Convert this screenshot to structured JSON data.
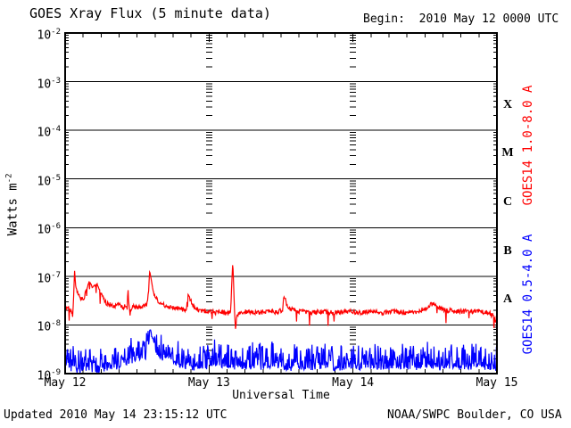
{
  "header": {
    "title": "GOES Xray Flux (5 minute data)",
    "begin_label": "Begin:  2010 May 12 0000 UTC"
  },
  "footer": {
    "updated": "Updated 2010 May 14 23:15:12 UTC",
    "source": "NOAA/SWPC Boulder, CO USA"
  },
  "colors": {
    "long_channel": "#ff0000",
    "short_channel": "#0000ff",
    "axis": "#000000",
    "background": "#ffffff"
  },
  "chart_data": {
    "type": "line",
    "title": "GOES Xray Flux (5 minute data)",
    "xlabel": "Universal Time",
    "ylabel": "Watts m^-2",
    "ylabel_parts": {
      "text": "Watts m",
      "exp": "-2"
    },
    "x_axis": {
      "start": "2010 May 12 0000 UTC",
      "end": "2010 May 15 0000 UTC",
      "range_hours": [
        0,
        72
      ],
      "tick_labels": [
        "May 12",
        "May 13",
        "May 14",
        "May 15"
      ],
      "minor_tick_hours": 3,
      "day_gridline_hours": [
        24,
        48
      ]
    },
    "y_axis": {
      "scale": "log",
      "range": [
        1e-09,
        0.01
      ],
      "tick_exponents": [
        -2,
        -3,
        -4,
        -5,
        -6,
        -7,
        -8,
        -9
      ],
      "grid": "solid line at each decade"
    },
    "flare_class_labels": [
      {
        "label": "X",
        "mid_exponent": -3.5
      },
      {
        "label": "M",
        "mid_exponent": -4.5
      },
      {
        "label": "C",
        "mid_exponent": -5.5
      },
      {
        "label": "B",
        "mid_exponent": -6.5
      },
      {
        "label": "A",
        "mid_exponent": -7.5
      }
    ],
    "series": [
      {
        "name": "GOES14 1.0-8.0 A",
        "color": "#ff0000",
        "cadence_minutes": 5,
        "keypoints_t_hours_flux": [
          [
            0,
            2.1e-08
          ],
          [
            0.5,
            2.2e-08
          ],
          [
            1.0,
            2e-08
          ],
          [
            1.25,
            1.5e-08
          ],
          [
            1.45,
            4e-08
          ],
          [
            1.55,
            1.45e-07
          ],
          [
            1.75,
            6.5e-08
          ],
          [
            2.1,
            4.3e-08
          ],
          [
            2.6,
            3.6e-08
          ],
          [
            3.1,
            3.3e-08
          ],
          [
            3.6,
            5.5e-08
          ],
          [
            4.05,
            8e-08
          ],
          [
            4.5,
            6e-08
          ],
          [
            5.0,
            6.5e-08
          ],
          [
            5.3,
            7e-08
          ],
          [
            5.8,
            5e-08
          ],
          [
            6.3,
            3.6e-08
          ],
          [
            6.9,
            2.8e-08
          ],
          [
            7.6,
            2.6e-08
          ],
          [
            8.3,
            2.5e-08
          ],
          [
            9.0,
            2.6e-08
          ],
          [
            9.6,
            2.3e-08
          ],
          [
            10.0,
            2.4e-08
          ],
          [
            10.35,
            2.2e-08
          ],
          [
            10.45,
            6e-08
          ],
          [
            10.6,
            2.8e-08
          ],
          [
            10.8,
            1.7e-08
          ],
          [
            11.2,
            2.3e-08
          ],
          [
            11.8,
            2.4e-08
          ],
          [
            12.4,
            2.3e-08
          ],
          [
            13.0,
            2.4e-08
          ],
          [
            13.6,
            2.6e-08
          ],
          [
            13.9,
            4.5e-08
          ],
          [
            14.1,
            1.35e-07
          ],
          [
            14.35,
            8.5e-08
          ],
          [
            14.7,
            4.6e-08
          ],
          [
            15.2,
            3.4e-08
          ],
          [
            15.8,
            2.9e-08
          ],
          [
            16.5,
            2.5e-08
          ],
          [
            17.5,
            2.3e-08
          ],
          [
            18.5,
            2.2e-08
          ],
          [
            19.5,
            2.1e-08
          ],
          [
            20.2,
            2e-08
          ],
          [
            20.5,
            4.6e-08
          ],
          [
            20.9,
            3.2e-08
          ],
          [
            21.4,
            2.5e-08
          ],
          [
            22.2,
            2.1e-08
          ],
          [
            23.0,
            1.9e-08
          ],
          [
            24.0,
            2e-08
          ],
          [
            25.0,
            1.8e-08
          ],
          [
            26.0,
            1.9e-08
          ],
          [
            27.0,
            1.7e-08
          ],
          [
            27.6,
            1.9e-08
          ],
          [
            27.95,
            2.2e-07
          ],
          [
            28.2,
            2.8e-08
          ],
          [
            28.4,
            8e-09
          ],
          [
            28.7,
            1.6e-08
          ],
          [
            29.3,
            1.8e-08
          ],
          [
            30.5,
            1.9e-08
          ],
          [
            32,
            1.8e-08
          ],
          [
            34,
            1.9e-08
          ],
          [
            35.5,
            1.8e-08
          ],
          [
            36.3,
            2.1e-08
          ],
          [
            36.5,
            4.2e-08
          ],
          [
            36.9,
            2.7e-08
          ],
          [
            37.6,
            2.1e-08
          ],
          [
            39,
            1.9e-08
          ],
          [
            41,
            1.8e-08
          ],
          [
            43,
            1.9e-08
          ],
          [
            45,
            1.8e-08
          ],
          [
            47,
            1.9e-08
          ],
          [
            49,
            1.8e-08
          ],
          [
            51,
            1.9e-08
          ],
          [
            53,
            1.8e-08
          ],
          [
            55,
            1.9e-08
          ],
          [
            57,
            1.8e-08
          ],
          [
            59,
            1.9e-08
          ],
          [
            60.3,
            2.3e-08
          ],
          [
            61.2,
            2.7e-08
          ],
          [
            62.2,
            2.3e-08
          ],
          [
            63.5,
            2e-08
          ],
          [
            65,
            1.9e-08
          ],
          [
            67,
            1.9e-08
          ],
          [
            69,
            1.9e-08
          ],
          [
            70.5,
            1.8e-08
          ],
          [
            71.2,
            1.6e-08
          ],
          [
            71.7,
            1.3e-08
          ],
          [
            72,
            1e-08
          ]
        ]
      },
      {
        "name": "GOES14 0.5-4.0 A",
        "color": "#0000ff",
        "cadence_minutes": 5,
        "keypoints_t_hours_flux": [
          [
            0,
            1.2e-09
          ],
          [
            0.4,
            1.6e-09
          ],
          [
            0.9,
            1.1e-09
          ],
          [
            1.5,
            1.4e-09
          ],
          [
            2.2,
            1e-09
          ],
          [
            3,
            1.1e-09
          ],
          [
            4,
            1.2e-09
          ],
          [
            5,
            1e-09
          ],
          [
            6.5,
            1.1e-09
          ],
          [
            8,
            1.2e-09
          ],
          [
            9.5,
            1.4e-09
          ],
          [
            10.5,
            1.6e-09
          ],
          [
            11.5,
            1.8e-09
          ],
          [
            12.5,
            1.9e-09
          ],
          [
            13.3,
            1.6e-09
          ],
          [
            13.8,
            2.5e-09
          ],
          [
            14.15,
            7.8e-09
          ],
          [
            14.5,
            5.5e-09
          ],
          [
            14.9,
            3.2e-09
          ],
          [
            15.4,
            2.4e-09
          ],
          [
            16.2,
            1.8e-09
          ],
          [
            17.3,
            2e-09
          ],
          [
            18.5,
            1.4e-09
          ],
          [
            20,
            1.3e-09
          ],
          [
            22,
            1.2e-09
          ],
          [
            24,
            1.3e-09
          ],
          [
            25.5,
            1.5e-09
          ],
          [
            27,
            1.3e-09
          ],
          [
            29,
            1.2e-09
          ],
          [
            31,
            1.3e-09
          ],
          [
            33,
            1.2e-09
          ],
          [
            35,
            1.3e-09
          ],
          [
            37,
            1.2e-09
          ],
          [
            39,
            1.3e-09
          ],
          [
            41,
            1.2e-09
          ],
          [
            43,
            1.3e-09
          ],
          [
            45,
            1.2e-09
          ],
          [
            47,
            1.3e-09
          ],
          [
            49,
            1.2e-09
          ],
          [
            51,
            1.3e-09
          ],
          [
            53,
            1.2e-09
          ],
          [
            55,
            1.3e-09
          ],
          [
            57,
            1.2e-09
          ],
          [
            59,
            1.3e-09
          ],
          [
            61,
            1.4e-09
          ],
          [
            63,
            1.2e-09
          ],
          [
            65,
            1.3e-09
          ],
          [
            67,
            1.2e-09
          ],
          [
            69,
            1.3e-09
          ],
          [
            71,
            1.2e-09
          ],
          [
            72,
            1.2e-09
          ]
        ]
      }
    ]
  }
}
